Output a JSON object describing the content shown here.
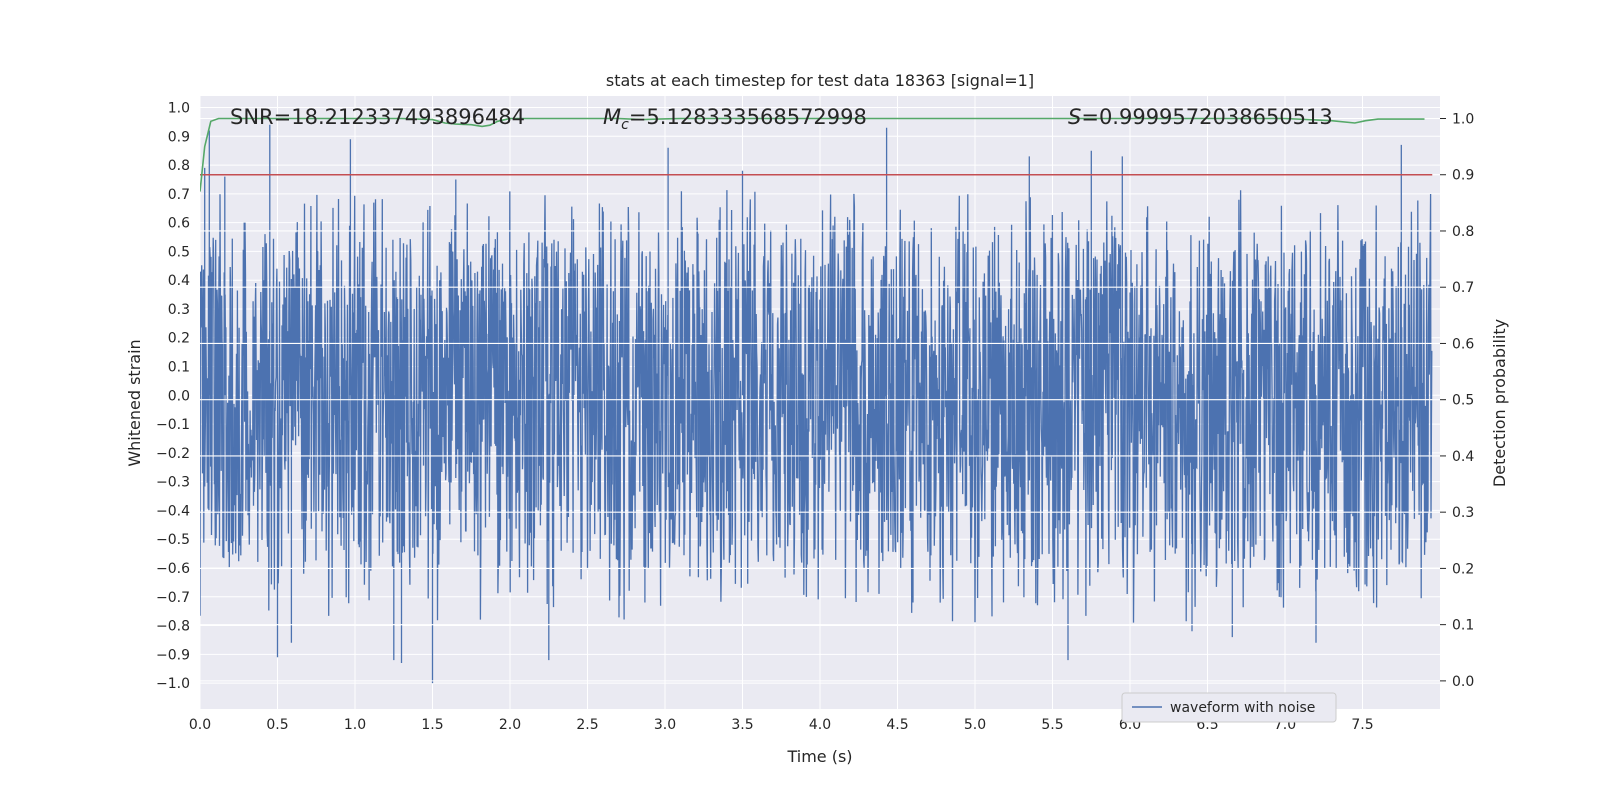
{
  "chart_data": {
    "type": "line",
    "title": "stats at each timestep for test data 18363 [signal=1]",
    "xlabel": "Time (s)",
    "ylabel_left": "Whitened strain",
    "ylabel_right": "Detection probability",
    "xlim": [
      0.0,
      8.0
    ],
    "ylim_left": [
      -1.09,
      1.04
    ],
    "ylim_right": [
      -0.05,
      1.04
    ],
    "x_ticks": [
      0.0,
      0.5,
      1.0,
      1.5,
      2.0,
      2.5,
      3.0,
      3.5,
      4.0,
      4.5,
      5.0,
      5.5,
      6.0,
      6.5,
      7.0,
      7.5
    ],
    "x_tick_labels": [
      "0.0",
      "0.5",
      "1.0",
      "1.5",
      "2.0",
      "2.5",
      "3.0",
      "3.5",
      "4.0",
      "4.5",
      "5.0",
      "5.5",
      "6.0",
      "6.5",
      "7.0",
      "7.5"
    ],
    "y_left_ticks": [
      1.0,
      0.9,
      0.8,
      0.7,
      0.6,
      0.5,
      0.4,
      0.3,
      0.2,
      0.1,
      0.0,
      -0.1,
      -0.2,
      -0.3,
      -0.4,
      -0.5,
      -0.6,
      -0.7,
      -0.8,
      -0.9,
      -1.0
    ],
    "y_left_tick_labels": [
      "1.0",
      "0.9",
      "0.8",
      "0.7",
      "0.6",
      "0.5",
      "0.4",
      "0.3",
      "0.2",
      "0.1",
      "0.0",
      "−0.1",
      "−0.2",
      "−0.3",
      "−0.4",
      "−0.5",
      "−0.6",
      "−0.7",
      "−0.8",
      "−0.9",
      "−1.0"
    ],
    "y_right_ticks": [
      1.0,
      0.9,
      0.8,
      0.7,
      0.6,
      0.5,
      0.4,
      0.3,
      0.2,
      0.1,
      0.0
    ],
    "y_right_tick_labels": [
      "1.0",
      "0.9",
      "0.8",
      "0.7",
      "0.6",
      "0.5",
      "0.4",
      "0.3",
      "0.2",
      "0.1",
      "0.0"
    ],
    "annotations": {
      "snr": "SNR=18.212337493896484",
      "mc_symbol": "M",
      "mc_subscript": "c",
      "mc_value": "=5.128333568572998",
      "s_symbol": "S",
      "s_value": "=0.9999572038650513"
    },
    "series": [
      {
        "name": "waveform with noise",
        "axis": "left",
        "color": "#4c72b0",
        "description": "dense noisy whitened strain, core amplitude about ±0.35, spikes up to 0.93 and down to −1.0",
        "spike_peaks": [
          [
            0.03,
            0.79
          ],
          [
            0.06,
            0.92
          ],
          [
            0.16,
            0.76
          ],
          [
            0.45,
            0.94
          ],
          [
            0.5,
            -0.91
          ],
          [
            0.59,
            -0.86
          ],
          [
            0.97,
            0.89
          ],
          [
            1.25,
            -0.92
          ],
          [
            1.3,
            -0.93
          ],
          [
            1.5,
            -1.0
          ],
          [
            1.65,
            0.75
          ],
          [
            2.25,
            -0.92
          ],
          [
            2.87,
            -0.72
          ],
          [
            3.02,
            0.86
          ],
          [
            3.5,
            0.78
          ],
          [
            4.43,
            0.93
          ],
          [
            4.6,
            -0.72
          ],
          [
            5.35,
            0.83
          ],
          [
            5.6,
            -0.92
          ],
          [
            5.75,
            0.85
          ],
          [
            5.95,
            0.83
          ],
          [
            6.4,
            -0.82
          ],
          [
            6.66,
            -0.84
          ],
          [
            7.2,
            -0.86
          ],
          [
            7.75,
            0.87
          ]
        ],
        "band_values": {
          "upper_dense": 0.35,
          "lower_dense": -0.38,
          "upper_p95": 0.55,
          "lower_p95": -0.6
        }
      },
      {
        "name": "detection probability",
        "axis": "right",
        "color": "#55a868",
        "x": [
          0.0,
          0.03,
          0.07,
          0.12,
          0.2,
          0.5,
          1.0,
          1.3,
          1.5,
          1.58,
          1.65,
          1.75,
          1.82,
          1.87,
          1.92,
          2.0,
          2.2,
          2.7,
          2.85,
          2.95,
          3.1,
          4.0,
          5.0,
          6.0,
          7.0,
          7.3,
          7.45,
          7.52,
          7.6,
          7.9
        ],
        "y": [
          0.87,
          0.95,
          0.995,
          1.0,
          1.0,
          1.0,
          1.0,
          1.0,
          0.998,
          0.992,
          0.99,
          0.989,
          0.986,
          0.988,
          0.995,
          1.0,
          1.0,
          1.0,
          0.998,
          0.999,
          1.0,
          1.0,
          1.0,
          1.0,
          1.0,
          0.996,
          0.992,
          0.996,
          0.999,
          0.999
        ]
      },
      {
        "name": "threshold",
        "axis": "right",
        "color": "#c44e52",
        "x": [
          0.0,
          7.95
        ],
        "y": [
          0.9,
          0.9
        ]
      }
    ],
    "legend": {
      "entries": [
        "waveform with noise"
      ],
      "location": "lower-right"
    },
    "grid": true,
    "style": {
      "background": "#eaeaf2",
      "grid_color": "#ffffff"
    }
  }
}
